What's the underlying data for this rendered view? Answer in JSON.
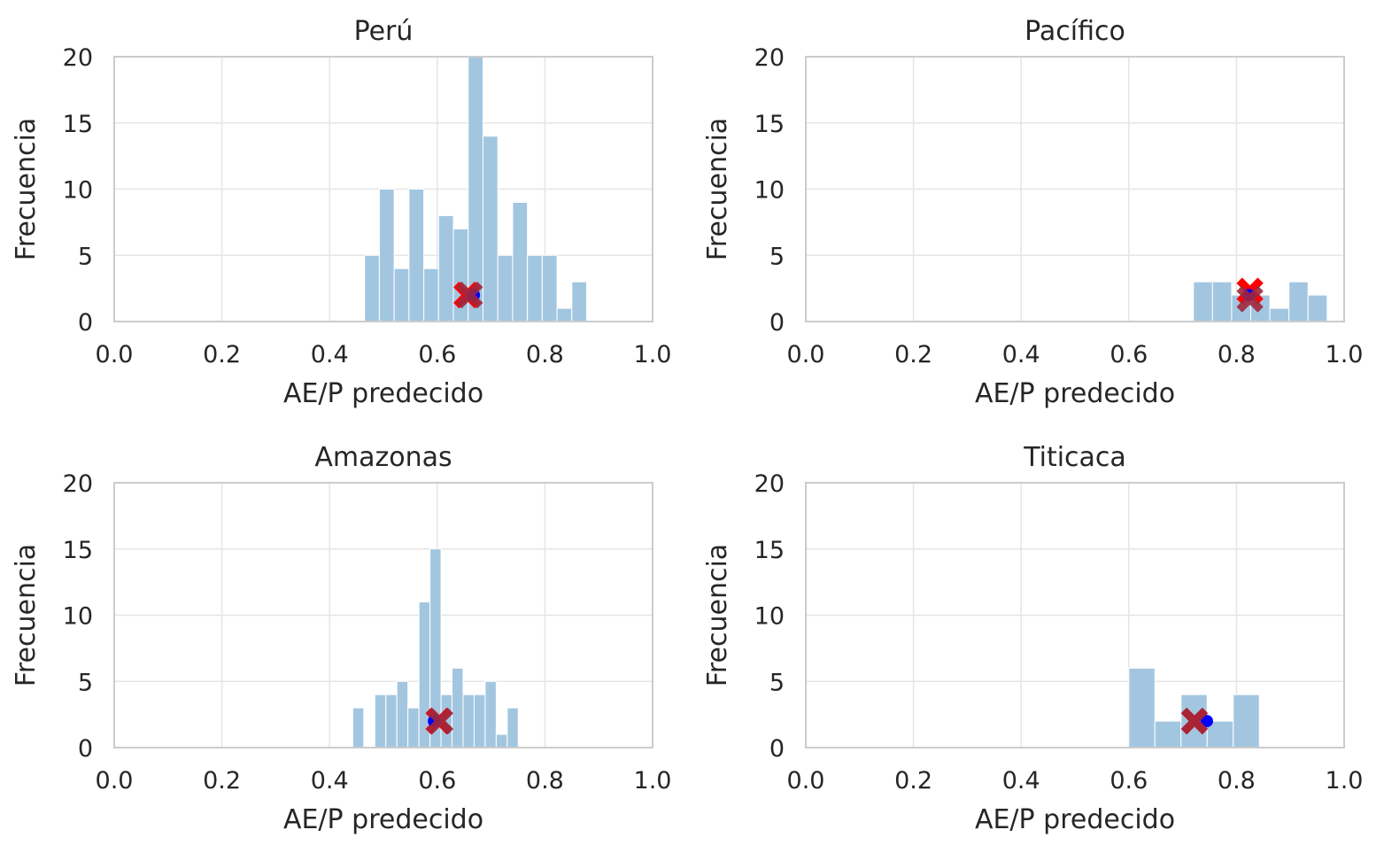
{
  "chart_data": [
    {
      "type": "histogram",
      "title": "Perú",
      "xlabel": "AE/P predecido",
      "ylabel": "Frecuencia",
      "xlim": [
        0.0,
        1.0
      ],
      "ylim": [
        0,
        20
      ],
      "xticks": [
        "0.0",
        "0.2",
        "0.4",
        "0.6",
        "0.8",
        "1.0"
      ],
      "yticks": [
        "0",
        "5",
        "10",
        "15",
        "20"
      ],
      "grid": true,
      "bin_width": 0.0275,
      "bins": [
        {
          "x0": 0.465,
          "count": 5
        },
        {
          "x0": 0.4925,
          "count": 10
        },
        {
          "x0": 0.52,
          "count": 4
        },
        {
          "x0": 0.5475,
          "count": 10
        },
        {
          "x0": 0.575,
          "count": 4
        },
        {
          "x0": 0.6025,
          "count": 8
        },
        {
          "x0": 0.63,
          "count": 7
        },
        {
          "x0": 0.6575,
          "count": 20
        },
        {
          "x0": 0.685,
          "count": 14
        },
        {
          "x0": 0.7125,
          "count": 5
        },
        {
          "x0": 0.74,
          "count": 9
        },
        {
          "x0": 0.7675,
          "count": 5
        },
        {
          "x0": 0.795,
          "count": 5
        },
        {
          "x0": 0.8225,
          "count": 1
        },
        {
          "x0": 0.85,
          "count": 3
        }
      ],
      "markers": [
        {
          "shape": "x",
          "color": "#ff0000",
          "x": 0.655,
          "y": 2
        },
        {
          "shape": "circle",
          "color": "#0000ff",
          "x": 0.668,
          "y": 2
        },
        {
          "shape": "x",
          "color": "#a0283c",
          "x": 0.66,
          "y": 2
        }
      ]
    },
    {
      "type": "histogram",
      "title": "Pacífico",
      "xlabel": "AE/P predecido",
      "ylabel": "Frecuencia",
      "xlim": [
        0.0,
        1.0
      ],
      "ylim": [
        0,
        20
      ],
      "xticks": [
        "0.0",
        "0.2",
        "0.4",
        "0.6",
        "0.8",
        "1.0"
      ],
      "yticks": [
        "0",
        "5",
        "10",
        "15",
        "20"
      ],
      "grid": true,
      "bin_width": 0.0355,
      "bins": [
        {
          "x0": 0.72,
          "count": 3
        },
        {
          "x0": 0.7555,
          "count": 3
        },
        {
          "x0": 0.791,
          "count": 2
        },
        {
          "x0": 0.8265,
          "count": 2
        },
        {
          "x0": 0.862,
          "count": 1
        },
        {
          "x0": 0.8975,
          "count": 3
        },
        {
          "x0": 0.933,
          "count": 2
        }
      ],
      "markers": [
        {
          "shape": "x",
          "color": "#ff0000",
          "x": 0.825,
          "y": 2.3
        },
        {
          "shape": "circle",
          "color": "#0000ff",
          "x": 0.823,
          "y": 2
        },
        {
          "shape": "x",
          "color": "#a0283c",
          "x": 0.825,
          "y": 1.7
        }
      ]
    },
    {
      "type": "histogram",
      "title": "Amazonas",
      "xlabel": "AE/P predecido",
      "ylabel": "Frecuencia",
      "xlim": [
        0.0,
        1.0
      ],
      "ylim": [
        0,
        20
      ],
      "xticks": [
        "0.0",
        "0.2",
        "0.4",
        "0.6",
        "0.8",
        "1.0"
      ],
      "yticks": [
        "0",
        "5",
        "10",
        "15",
        "20"
      ],
      "grid": true,
      "bin_width": 0.0205,
      "bins": [
        {
          "x0": 0.443,
          "count": 3
        },
        {
          "x0": 0.4635,
          "count": 0
        },
        {
          "x0": 0.484,
          "count": 4
        },
        {
          "x0": 0.5045,
          "count": 4
        },
        {
          "x0": 0.525,
          "count": 5
        },
        {
          "x0": 0.5455,
          "count": 3
        },
        {
          "x0": 0.566,
          "count": 11
        },
        {
          "x0": 0.5865,
          "count": 15
        },
        {
          "x0": 0.607,
          "count": 4
        },
        {
          "x0": 0.6275,
          "count": 6
        },
        {
          "x0": 0.648,
          "count": 4
        },
        {
          "x0": 0.6685,
          "count": 4
        },
        {
          "x0": 0.689,
          "count": 5
        },
        {
          "x0": 0.7095,
          "count": 1
        },
        {
          "x0": 0.73,
          "count": 3
        }
      ],
      "markers": [
        {
          "shape": "x",
          "color": "#ff0000",
          "x": 0.603,
          "y": 2
        },
        {
          "shape": "circle",
          "color": "#0000ff",
          "x": 0.594,
          "y": 2
        },
        {
          "shape": "x",
          "color": "#a0283c",
          "x": 0.605,
          "y": 2
        }
      ]
    },
    {
      "type": "histogram",
      "title": "Titicaca",
      "xlabel": "AE/P predecido",
      "ylabel": "Frecuencia",
      "xlim": [
        0.0,
        1.0
      ],
      "ylim": [
        0,
        20
      ],
      "xticks": [
        "0.0",
        "0.2",
        "0.4",
        "0.6",
        "0.8",
        "1.0"
      ],
      "yticks": [
        "0",
        "5",
        "10",
        "15",
        "20"
      ],
      "grid": true,
      "bin_width": 0.0485,
      "bins": [
        {
          "x0": 0.6,
          "count": 6
        },
        {
          "x0": 0.6485,
          "count": 2
        },
        {
          "x0": 0.697,
          "count": 4
        },
        {
          "x0": 0.7455,
          "count": 2
        },
        {
          "x0": 0.794,
          "count": 4
        }
      ],
      "markers": [
        {
          "shape": "x",
          "color": "#ff0000",
          "x": 0.722,
          "y": 2
        },
        {
          "shape": "circle",
          "color": "#0000ff",
          "x": 0.745,
          "y": 2
        },
        {
          "shape": "x",
          "color": "#a0283c",
          "x": 0.722,
          "y": 2
        }
      ]
    }
  ]
}
